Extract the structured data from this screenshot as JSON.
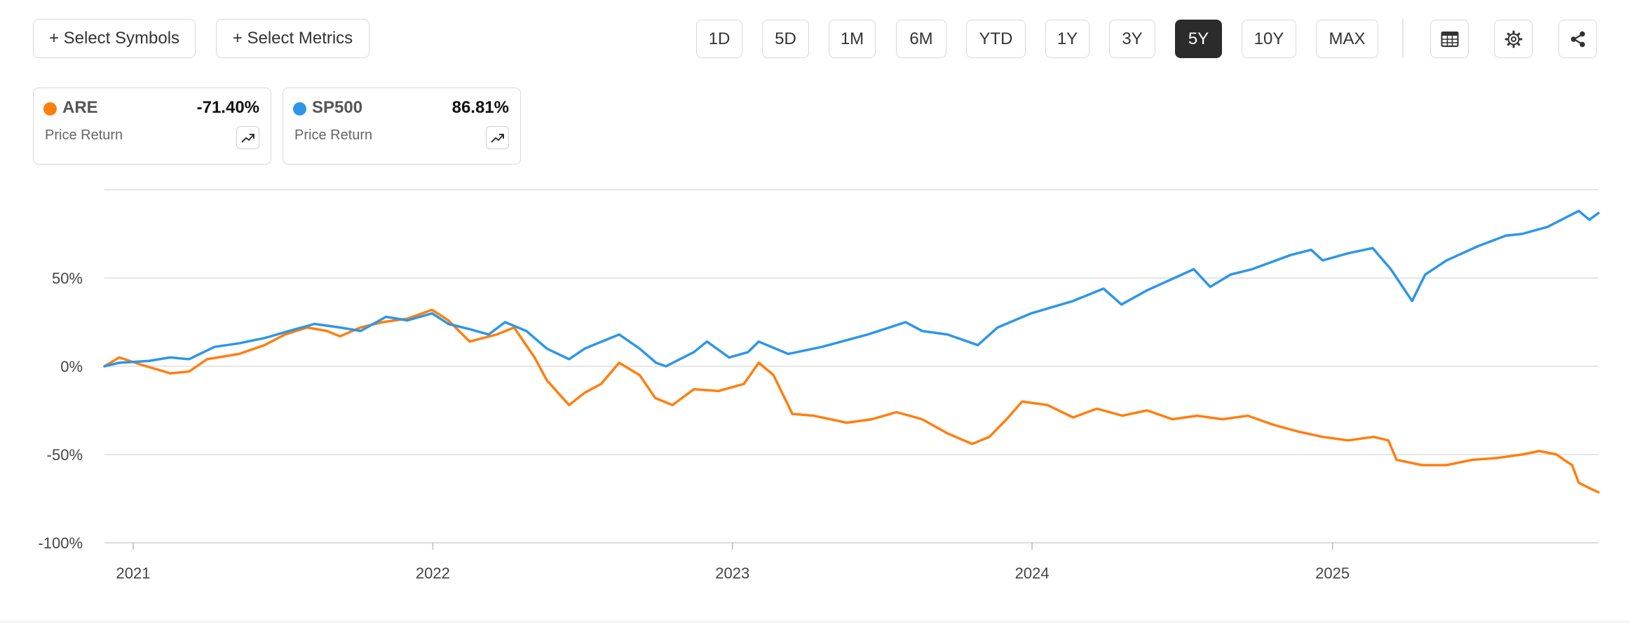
{
  "toolbar": {
    "select_symbols": "+ Select Symbols",
    "select_metrics": "+ Select Metrics",
    "ranges": [
      "1D",
      "5D",
      "1M",
      "6M",
      "YTD",
      "1Y",
      "3Y",
      "5Y",
      "10Y",
      "MAX"
    ],
    "active_range": "5Y",
    "icons": [
      "table-icon",
      "gear-icon",
      "share-icon"
    ]
  },
  "legend": [
    {
      "symbol": "ARE",
      "value": "-71.40%",
      "metric": "Price Return",
      "color": "#ff7f0e",
      "icon": "trend-icon"
    },
    {
      "symbol": "SP500",
      "value": "86.81%",
      "metric": "Price Return",
      "color": "#2d96e8",
      "icon": "trend-icon"
    }
  ],
  "chart_data": {
    "type": "line",
    "ylim": [
      -100,
      100
    ],
    "yticks": [
      50,
      0,
      -50,
      -100
    ],
    "ytick_labels": [
      "50%",
      "0%",
      "-50%",
      "-100%"
    ],
    "xlim": [
      "2020-11-27",
      "2025-11-21"
    ],
    "xtick_labels": [
      "2021",
      "2022",
      "2023",
      "2024",
      "2025"
    ],
    "xtick_dates": [
      "2021-01-01",
      "2022-01-01",
      "2023-01-01",
      "2024-01-01",
      "2025-01-01"
    ],
    "grid": true,
    "series": [
      {
        "name": "ARE",
        "color": "#ff7f0e",
        "points": [
          [
            "2020-11-27",
            0
          ],
          [
            "2020-12-15",
            5
          ],
          [
            "2021-01-10",
            1
          ],
          [
            "2021-02-15",
            -4
          ],
          [
            "2021-03-10",
            -3
          ],
          [
            "2021-04-01",
            4
          ],
          [
            "2021-05-10",
            7
          ],
          [
            "2021-06-10",
            12
          ],
          [
            "2021-07-05",
            18
          ],
          [
            "2021-08-01",
            22
          ],
          [
            "2021-08-25",
            20
          ],
          [
            "2021-09-10",
            17
          ],
          [
            "2021-10-05",
            22
          ],
          [
            "2021-11-01",
            25
          ],
          [
            "2021-12-01",
            27
          ],
          [
            "2021-12-31",
            32
          ],
          [
            "2022-01-20",
            26
          ],
          [
            "2022-02-15",
            14
          ],
          [
            "2022-03-20",
            18
          ],
          [
            "2022-04-10",
            22
          ],
          [
            "2022-05-05",
            5
          ],
          [
            "2022-05-20",
            -8
          ],
          [
            "2022-06-16",
            -22
          ],
          [
            "2022-07-05",
            -15
          ],
          [
            "2022-07-25",
            -10
          ],
          [
            "2022-08-16",
            2
          ],
          [
            "2022-09-10",
            -5
          ],
          [
            "2022-09-29",
            -18
          ],
          [
            "2022-10-20",
            -22
          ],
          [
            "2022-11-15",
            -13
          ],
          [
            "2022-12-15",
            -14
          ],
          [
            "2023-01-15",
            -10
          ],
          [
            "2023-02-02",
            2
          ],
          [
            "2023-02-20",
            -5
          ],
          [
            "2023-03-15",
            -27
          ],
          [
            "2023-04-10",
            -28
          ],
          [
            "2023-05-20",
            -32
          ],
          [
            "2023-06-20",
            -30
          ],
          [
            "2023-07-20",
            -26
          ],
          [
            "2023-08-20",
            -30
          ],
          [
            "2023-09-20",
            -38
          ],
          [
            "2023-10-20",
            -44
          ],
          [
            "2023-11-10",
            -40
          ],
          [
            "2023-12-01",
            -30
          ],
          [
            "2023-12-20",
            -20
          ],
          [
            "2024-01-20",
            -22
          ],
          [
            "2024-02-20",
            -29
          ],
          [
            "2024-03-20",
            -24
          ],
          [
            "2024-04-20",
            -28
          ],
          [
            "2024-05-20",
            -25
          ],
          [
            "2024-06-20",
            -30
          ],
          [
            "2024-07-20",
            -28
          ],
          [
            "2024-08-20",
            -30
          ],
          [
            "2024-09-20",
            -28
          ],
          [
            "2024-10-20",
            -33
          ],
          [
            "2024-11-20",
            -37
          ],
          [
            "2024-12-20",
            -40
          ],
          [
            "2025-01-20",
            -42
          ],
          [
            "2025-02-20",
            -40
          ],
          [
            "2025-03-10",
            -42
          ],
          [
            "2025-03-20",
            -53
          ],
          [
            "2025-04-20",
            -56
          ],
          [
            "2025-05-20",
            -56
          ],
          [
            "2025-06-20",
            -53
          ],
          [
            "2025-07-20",
            -52
          ],
          [
            "2025-08-20",
            -50
          ],
          [
            "2025-09-10",
            -48
          ],
          [
            "2025-10-01",
            -50
          ],
          [
            "2025-10-10",
            -53
          ],
          [
            "2025-10-20",
            -56
          ],
          [
            "2025-10-28",
            -66
          ],
          [
            "2025-11-10",
            -69
          ],
          [
            "2025-11-21",
            -71.4
          ]
        ]
      },
      {
        "name": "SP500",
        "color": "#2d96e8",
        "points": [
          [
            "2020-11-27",
            0
          ],
          [
            "2020-12-15",
            2
          ],
          [
            "2021-01-20",
            3
          ],
          [
            "2021-02-15",
            5
          ],
          [
            "2021-03-10",
            4
          ],
          [
            "2021-04-10",
            11
          ],
          [
            "2021-05-10",
            13
          ],
          [
            "2021-06-10",
            16
          ],
          [
            "2021-07-10",
            20
          ],
          [
            "2021-08-10",
            24
          ],
          [
            "2021-09-10",
            22
          ],
          [
            "2021-10-05",
            20
          ],
          [
            "2021-11-05",
            28
          ],
          [
            "2021-12-01",
            26
          ],
          [
            "2021-12-31",
            30
          ],
          [
            "2022-01-20",
            24
          ],
          [
            "2022-02-15",
            21
          ],
          [
            "2022-03-10",
            18
          ],
          [
            "2022-03-30",
            25
          ],
          [
            "2022-04-25",
            20
          ],
          [
            "2022-05-20",
            10
          ],
          [
            "2022-06-16",
            4
          ],
          [
            "2022-07-05",
            10
          ],
          [
            "2022-08-16",
            18
          ],
          [
            "2022-09-10",
            10
          ],
          [
            "2022-09-30",
            2
          ],
          [
            "2022-10-12",
            0
          ],
          [
            "2022-11-15",
            8
          ],
          [
            "2022-12-01",
            14
          ],
          [
            "2022-12-28",
            5
          ],
          [
            "2023-01-20",
            8
          ],
          [
            "2023-02-02",
            14
          ],
          [
            "2023-03-10",
            7
          ],
          [
            "2023-04-20",
            11
          ],
          [
            "2023-06-15",
            18
          ],
          [
            "2023-07-31",
            25
          ],
          [
            "2023-08-20",
            20
          ],
          [
            "2023-09-20",
            18
          ],
          [
            "2023-10-27",
            12
          ],
          [
            "2023-11-20",
            22
          ],
          [
            "2023-12-31",
            30
          ],
          [
            "2024-02-20",
            37
          ],
          [
            "2024-03-28",
            44
          ],
          [
            "2024-04-19",
            35
          ],
          [
            "2024-05-20",
            43
          ],
          [
            "2024-07-16",
            55
          ],
          [
            "2024-08-05",
            45
          ],
          [
            "2024-08-30",
            52
          ],
          [
            "2024-09-25",
            55
          ],
          [
            "2024-11-11",
            63
          ],
          [
            "2024-12-06",
            66
          ],
          [
            "2024-12-20",
            60
          ],
          [
            "2025-01-20",
            64
          ],
          [
            "2025-02-19",
            67
          ],
          [
            "2025-03-13",
            55
          ],
          [
            "2025-04-08",
            37
          ],
          [
            "2025-04-24",
            52
          ],
          [
            "2025-05-20",
            60
          ],
          [
            "2025-06-27",
            68
          ],
          [
            "2025-07-31",
            74
          ],
          [
            "2025-08-20",
            75
          ],
          [
            "2025-09-20",
            79
          ],
          [
            "2025-10-28",
            88
          ],
          [
            "2025-11-10",
            83
          ],
          [
            "2025-11-21",
            86.81
          ]
        ]
      }
    ]
  }
}
